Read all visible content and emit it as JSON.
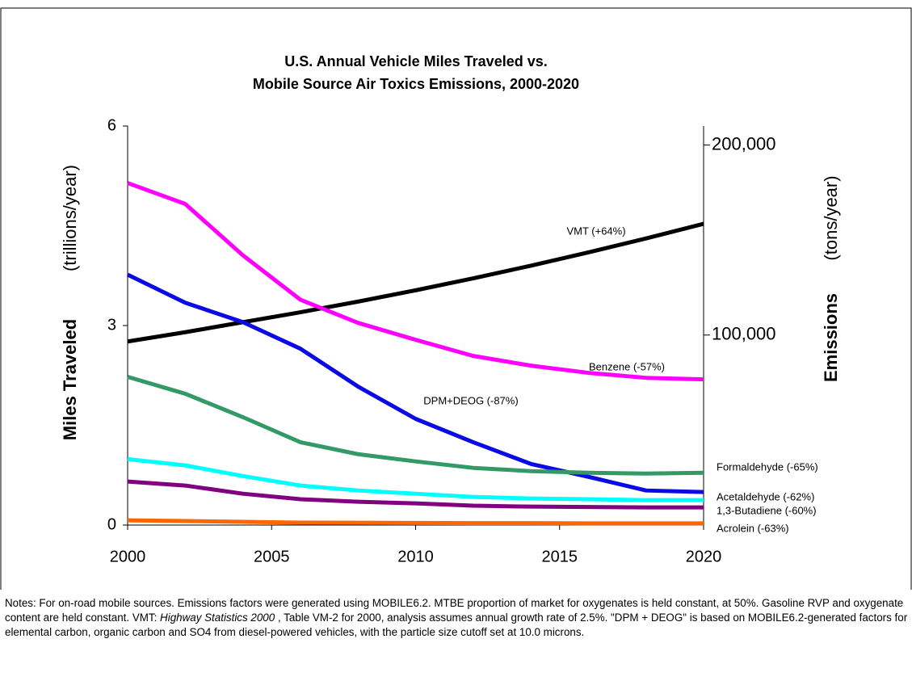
{
  "chart_data": {
    "type": "line",
    "title": [
      "U.S. Annual Vehicle Miles Traveled vs.",
      "Mobile Source Air Toxics Emissions, 2000-2020"
    ],
    "ylabel": [
      "Miles Traveled",
      "(trillions/year)"
    ],
    "y2label": [
      "Emissions",
      "(tons/year)"
    ],
    "x": [
      2000,
      2002,
      2004,
      2006,
      2008,
      2010,
      2012,
      2014,
      2016,
      2018,
      2020
    ],
    "xlim": [
      2000,
      2020
    ],
    "xticks": [
      2000,
      2005,
      2010,
      2015,
      2020
    ],
    "ylim": [
      0,
      6
    ],
    "yticks": [
      0,
      3,
      6
    ],
    "y2lim": [
      0,
      210000
    ],
    "y2ticks": [
      {
        "value": 100000,
        "label": "100,000"
      },
      {
        "value": 200000,
        "label": "200,000"
      }
    ],
    "series": [
      {
        "name": "VMT (+64%)",
        "color": "#000000",
        "axis": "y",
        "values": [
          2.76,
          2.9,
          3.05,
          3.2,
          3.36,
          3.53,
          3.71,
          3.9,
          4.1,
          4.31,
          4.53
        ]
      },
      {
        "name": "Benzene (-57%)",
        "color": "#ff00ff",
        "axis": "y2",
        "values": [
          180000,
          169000,
          142000,
          118600,
          106400,
          97500,
          89000,
          83900,
          80100,
          77500,
          76700
        ]
      },
      {
        "name": "DPM+DEOG (-87%)",
        "color": "#0a0ae6",
        "axis": "y2",
        "values": [
          131800,
          117000,
          106800,
          92800,
          72900,
          55900,
          43600,
          32200,
          25400,
          18200,
          17400
        ]
      },
      {
        "name": "Formaldehyde (-65%)",
        "color": "#339966",
        "axis": "y2",
        "values": [
          78000,
          69100,
          56800,
          43600,
          37300,
          33500,
          30100,
          28400,
          27500,
          27100,
          27500
        ]
      },
      {
        "name": "Acetaldehyde (-62%)",
        "color": "#00ffff",
        "axis": "y2",
        "values": [
          34700,
          31400,
          25800,
          20800,
          18200,
          16500,
          14800,
          14000,
          13600,
          13100,
          13100
        ]
      },
      {
        "name": "1,3-Butadiene (-60%)",
        "color": "#800080",
        "axis": "y2",
        "values": [
          22900,
          20800,
          16500,
          13600,
          12300,
          11400,
          10200,
          9700,
          9500,
          9300,
          9300
        ]
      },
      {
        "name": "Acrolein (-63%)",
        "color": "#ff6600",
        "axis": "y2",
        "values": [
          2500,
          2100,
          1700,
          1300,
          1200,
          1100,
          1000,
          1000,
          900,
          900,
          900
        ]
      }
    ]
  },
  "notes": [
    "Notes: For on-road mobile sources.  Emissions factors were generated using MOBILE6.2.  MTBE proportion of market for oxygenates is held constant, at 50%.  Gasoline RVP and oxygenate content are held constant.  VMT: ",
    "Highway Statistics 2000",
    " , Table VM-2 for 2000, analysis assumes annual growth rate of 2.5%.  \"DPM + DEOG\" is based on MOBILE6.2-generated factors for elemental carbon, organic carbon and SO4 from diesel-powered vehicles, with the particle size cutoff set at 10.0 microns."
  ]
}
